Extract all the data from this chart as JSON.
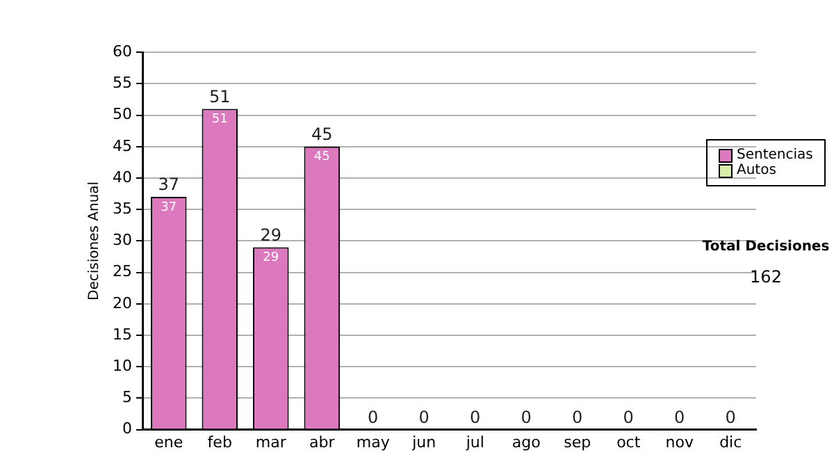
{
  "chart_data": {
    "type": "bar",
    "stacked": true,
    "ylabel": "Decisiones Anual",
    "categories": [
      "ene",
      "feb",
      "mar",
      "abr",
      "may",
      "jun",
      "jul",
      "ago",
      "sep",
      "oct",
      "nov",
      "dic"
    ],
    "series": [
      {
        "name": "Sentencias",
        "color": "#db78be",
        "values": [
          37,
          51,
          29,
          45,
          0,
          0,
          0,
          0,
          0,
          0,
          0,
          0
        ],
        "value_labels": [
          "37",
          "51",
          "29",
          "45",
          null,
          null,
          null,
          null,
          null,
          null,
          null,
          null
        ]
      },
      {
        "name": "Autos",
        "color": "#d8eea8",
        "values": [
          0,
          0,
          0,
          0,
          0,
          0,
          0,
          0,
          0,
          0,
          0,
          0
        ]
      }
    ],
    "totals": [
      "37",
      "51",
      "29",
      "45",
      "0",
      "0",
      "0",
      "0",
      "0",
      "0",
      "0",
      "0"
    ],
    "ylim": [
      0,
      60
    ],
    "yticks": [
      0,
      5,
      10,
      15,
      20,
      25,
      30,
      35,
      40,
      45,
      50,
      55,
      60
    ],
    "grid": "y",
    "legend": "right",
    "annotations": [
      "Total Decisiones",
      "162"
    ]
  }
}
